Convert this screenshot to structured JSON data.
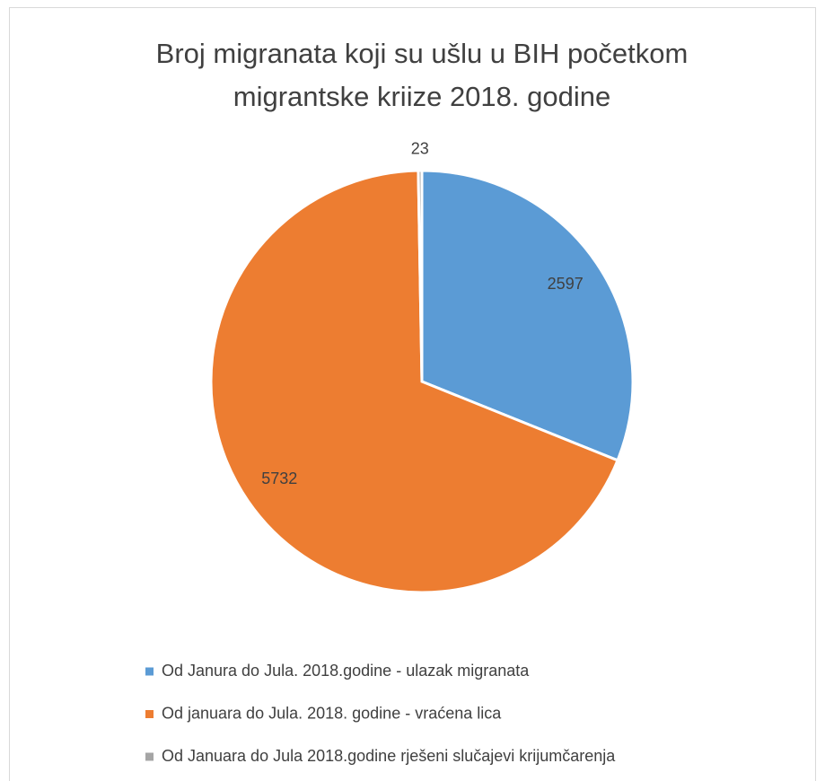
{
  "chart_data": {
    "type": "pie",
    "title": "Broj migranata koji su ušlu u BIH početkom migrantske kriize 2018. godine",
    "categories": [
      "Od Janura do Jula. 2018.godine - ulazak migranata",
      "Od januara do Jula. 2018. godine - vraćena lica",
      "Od Januara do Jula 2018.godine rješeni slučajevi krijumčarenja"
    ],
    "values": [
      2597,
      5732,
      23
    ],
    "colors": [
      "#5b9bd5",
      "#ed7d31",
      "#a5a5a5"
    ],
    "legend": "bottom"
  }
}
